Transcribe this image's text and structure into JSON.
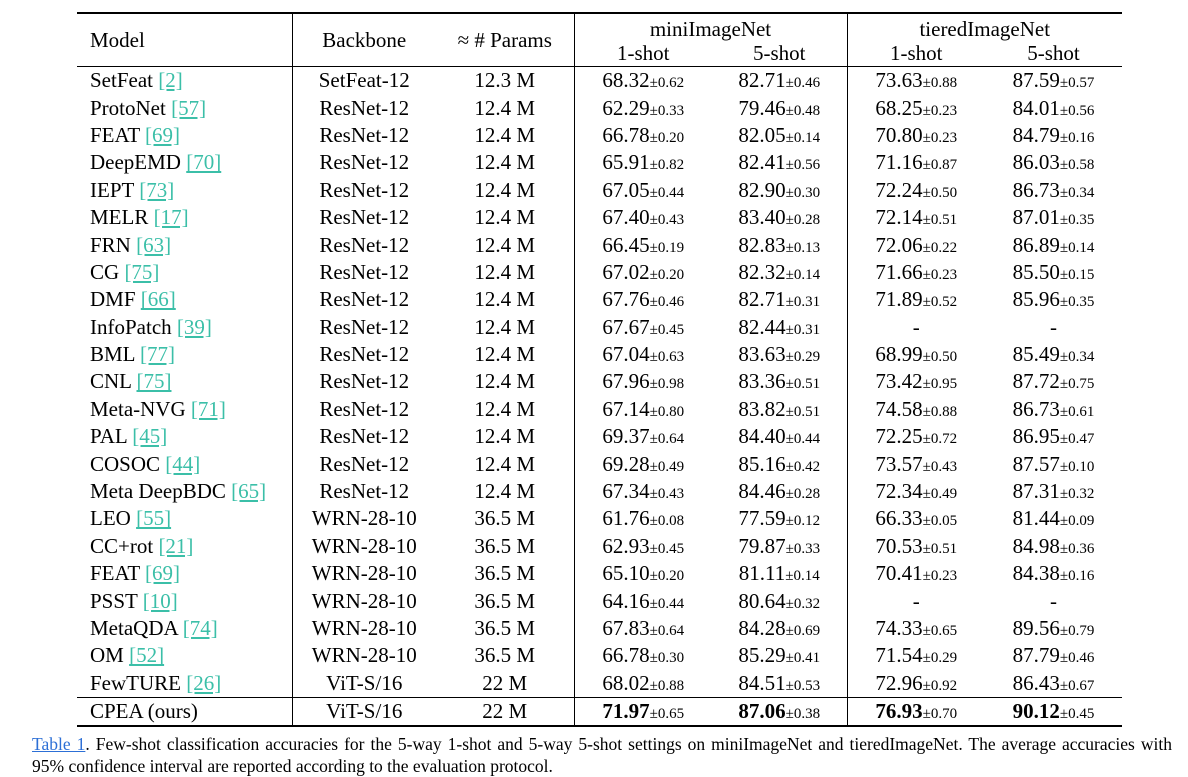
{
  "table": {
    "headers": {
      "model": "Model",
      "backbone": "Backbone",
      "params": "≈ # Params",
      "group1": "miniImageNet",
      "group2": "tieredImageNet",
      "shot1": "1-shot",
      "shot5": "5-shot"
    },
    "rows": [
      {
        "model": "SetFeat",
        "ref": "[2]",
        "backbone": "SetFeat-12",
        "params": "12.3 M",
        "m1": "68.32",
        "m1e": "±0.62",
        "m5": "82.71",
        "m5e": "±0.46",
        "t1": "73.63",
        "t1e": "±0.88",
        "t5": "87.59",
        "t5e": "±0.57"
      },
      {
        "model": "ProtoNet",
        "ref": "[57]",
        "backbone": "ResNet-12",
        "params": "12.4 M",
        "m1": "62.29",
        "m1e": "±0.33",
        "m5": "79.46",
        "m5e": "±0.48",
        "t1": "68.25",
        "t1e": "±0.23",
        "t5": "84.01",
        "t5e": "±0.56"
      },
      {
        "model": "FEAT",
        "ref": "[69]",
        "backbone": "ResNet-12",
        "params": "12.4 M",
        "m1": "66.78",
        "m1e": "±0.20",
        "m5": "82.05",
        "m5e": "±0.14",
        "t1": "70.80",
        "t1e": "±0.23",
        "t5": "84.79",
        "t5e": "±0.16"
      },
      {
        "model": "DeepEMD",
        "ref": "[70]",
        "backbone": "ResNet-12",
        "params": "12.4 M",
        "m1": "65.91",
        "m1e": "±0.82",
        "m5": "82.41",
        "m5e": "±0.56",
        "t1": "71.16",
        "t1e": "±0.87",
        "t5": "86.03",
        "t5e": "±0.58"
      },
      {
        "model": "IEPT",
        "ref": "[73]",
        "backbone": "ResNet-12",
        "params": "12.4 M",
        "m1": "67.05",
        "m1e": "±0.44",
        "m5": "82.90",
        "m5e": "±0.30",
        "t1": "72.24",
        "t1e": "±0.50",
        "t5": "86.73",
        "t5e": "±0.34"
      },
      {
        "model": "MELR",
        "ref": "[17]",
        "backbone": "ResNet-12",
        "params": "12.4 M",
        "m1": "67.40",
        "m1e": "±0.43",
        "m5": "83.40",
        "m5e": "±0.28",
        "t1": "72.14",
        "t1e": "±0.51",
        "t5": "87.01",
        "t5e": "±0.35"
      },
      {
        "model": "FRN",
        "ref": "[63]",
        "backbone": "ResNet-12",
        "params": "12.4 M",
        "m1": "66.45",
        "m1e": "±0.19",
        "m5": "82.83",
        "m5e": "±0.13",
        "t1": "72.06",
        "t1e": "±0.22",
        "t5": "86.89",
        "t5e": "±0.14"
      },
      {
        "model": "CG",
        "ref": "[75]",
        "backbone": "ResNet-12",
        "params": "12.4 M",
        "m1": "67.02",
        "m1e": "±0.20",
        "m5": "82.32",
        "m5e": "±0.14",
        "t1": "71.66",
        "t1e": "±0.23",
        "t5": "85.50",
        "t5e": "±0.15"
      },
      {
        "model": "DMF",
        "ref": "[66]",
        "backbone": "ResNet-12",
        "params": "12.4 M",
        "m1": "67.76",
        "m1e": "±0.46",
        "m5": "82.71",
        "m5e": "±0.31",
        "t1": "71.89",
        "t1e": "±0.52",
        "t5": "85.96",
        "t5e": "±0.35"
      },
      {
        "model": "InfoPatch",
        "ref": "[39]",
        "backbone": "ResNet-12",
        "params": "12.4 M",
        "m1": "67.67",
        "m1e": "±0.45",
        "m5": "82.44",
        "m5e": "±0.31",
        "t1": "-",
        "t1e": "",
        "t5": "-",
        "t5e": ""
      },
      {
        "model": "BML",
        "ref": "[77]",
        "backbone": "ResNet-12",
        "params": "12.4 M",
        "m1": "67.04",
        "m1e": "±0.63",
        "m5": "83.63",
        "m5e": "±0.29",
        "t1": "68.99",
        "t1e": "±0.50",
        "t5": "85.49",
        "t5e": "±0.34"
      },
      {
        "model": "CNL",
        "ref": "[75]",
        "backbone": "ResNet-12",
        "params": "12.4 M",
        "m1": "67.96",
        "m1e": "±0.98",
        "m5": "83.36",
        "m5e": "±0.51",
        "t1": "73.42",
        "t1e": "±0.95",
        "t5": "87.72",
        "t5e": "±0.75"
      },
      {
        "model": "Meta-NVG",
        "ref": "[71]",
        "backbone": "ResNet-12",
        "params": "12.4 M",
        "m1": "67.14",
        "m1e": "±0.80",
        "m5": "83.82",
        "m5e": "±0.51",
        "t1": "74.58",
        "t1e": "±0.88",
        "t5": "86.73",
        "t5e": "±0.61"
      },
      {
        "model": "PAL",
        "ref": "[45]",
        "backbone": "ResNet-12",
        "params": "12.4 M",
        "m1": "69.37",
        "m1e": "±0.64",
        "m5": "84.40",
        "m5e": "±0.44",
        "t1": "72.25",
        "t1e": "±0.72",
        "t5": "86.95",
        "t5e": "±0.47"
      },
      {
        "model": "COSOC",
        "ref": "[44]",
        "backbone": "ResNet-12",
        "params": "12.4 M",
        "m1": "69.28",
        "m1e": "±0.49",
        "m5": "85.16",
        "m5e": "±0.42",
        "t1": "73.57",
        "t1e": "±0.43",
        "t5": "87.57",
        "t5e": "±0.10"
      },
      {
        "model": "Meta DeepBDC",
        "ref": "[65]",
        "backbone": "ResNet-12",
        "params": "12.4 M",
        "m1": "67.34",
        "m1e": "±0.43",
        "m5": "84.46",
        "m5e": "±0.28",
        "t1": "72.34",
        "t1e": "±0.49",
        "t5": "87.31",
        "t5e": "±0.32"
      },
      {
        "model": "LEO",
        "ref": "[55]",
        "backbone": "WRN-28-10",
        "params": "36.5 M",
        "m1": "61.76",
        "m1e": "±0.08",
        "m5": "77.59",
        "m5e": "±0.12",
        "t1": "66.33",
        "t1e": "±0.05",
        "t5": "81.44",
        "t5e": "±0.09"
      },
      {
        "model": "CC+rot",
        "ref": "[21]",
        "backbone": "WRN-28-10",
        "params": "36.5 M",
        "m1": "62.93",
        "m1e": "±0.45",
        "m5": "79.87",
        "m5e": "±0.33",
        "t1": "70.53",
        "t1e": "±0.51",
        "t5": "84.98",
        "t5e": "±0.36"
      },
      {
        "model": "FEAT",
        "ref": "[69]",
        "backbone": "WRN-28-10",
        "params": "36.5 M",
        "m1": "65.10",
        "m1e": "±0.20",
        "m5": "81.11",
        "m5e": "±0.14",
        "t1": "70.41",
        "t1e": "±0.23",
        "t5": "84.38",
        "t5e": "±0.16"
      },
      {
        "model": "PSST",
        "ref": "[10]",
        "backbone": "WRN-28-10",
        "params": "36.5 M",
        "m1": "64.16",
        "m1e": "±0.44",
        "m5": "80.64",
        "m5e": "±0.32",
        "t1": "-",
        "t1e": "",
        "t5": "-",
        "t5e": ""
      },
      {
        "model": "MetaQDA",
        "ref": "[74]",
        "backbone": "WRN-28-10",
        "params": "36.5 M",
        "m1": "67.83",
        "m1e": "±0.64",
        "m5": "84.28",
        "m5e": "±0.69",
        "t1": "74.33",
        "t1e": "±0.65",
        "t5": "89.56",
        "t5e": "±0.79"
      },
      {
        "model": "OM",
        "ref": "[52]",
        "backbone": "WRN-28-10",
        "params": "36.5 M",
        "m1": "66.78",
        "m1e": "±0.30",
        "m5": "85.29",
        "m5e": "±0.41",
        "t1": "71.54",
        "t1e": "±0.29",
        "t5": "87.79",
        "t5e": "±0.46"
      },
      {
        "model": "FewTURE",
        "ref": "[26]",
        "backbone": "ViT-S/16",
        "params": "22 M",
        "m1": "68.02",
        "m1e": "±0.88",
        "m5": "84.51",
        "m5e": "±0.53",
        "t1": "72.96",
        "t1e": "±0.92",
        "t5": "86.43",
        "t5e": "±0.67"
      }
    ],
    "ours": {
      "model": "CPEA (ours)",
      "ref": "",
      "backbone": "ViT-S/16",
      "params": "22 M",
      "m1": "71.97",
      "m1e": "±0.65",
      "m5": "87.06",
      "m5e": "±0.38",
      "t1": "76.93",
      "t1e": "±0.70",
      "t5": "90.12",
      "t5e": "±0.45"
    }
  },
  "caption": {
    "label": "Table 1",
    "text": ". Few-shot classification accuracies for the 5-way 1-shot and 5-way 5-shot settings on miniImageNet and tieredImageNet. The average accuracies with 95% confidence interval are reported according to the evaluation protocol."
  },
  "colors": {
    "ref_link": "#3bbfa8",
    "table_link": "#2c6fd6"
  }
}
